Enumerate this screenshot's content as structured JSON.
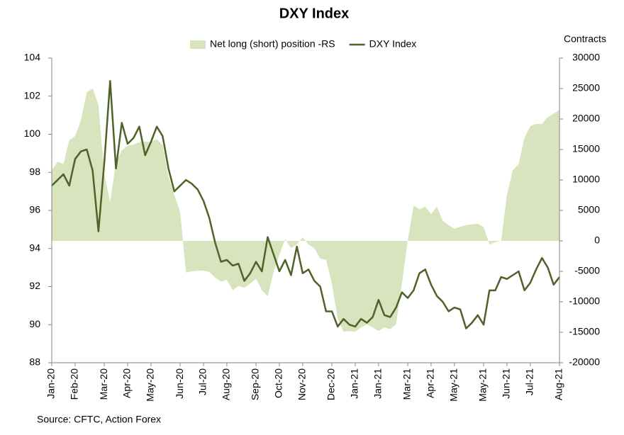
{
  "chart_data": {
    "type": "line",
    "title": "DXY Index",
    "y2label": "Contracts",
    "source": "Source: CFTC, Action Forex",
    "categories": [
      "Jan-20",
      null,
      null,
      null,
      "Feb-20",
      null,
      null,
      null,
      null,
      "Mar-20",
      null,
      null,
      null,
      "Apr-20",
      null,
      null,
      null,
      "May-20",
      null,
      null,
      null,
      null,
      "Jun-20",
      null,
      null,
      null,
      "Jul-20",
      null,
      null,
      null,
      "Aug-20",
      null,
      null,
      null,
      null,
      "Sep-20",
      null,
      null,
      null,
      "Oct-20",
      null,
      null,
      null,
      "Nov-20",
      null,
      null,
      null,
      null,
      "Dec-20",
      null,
      null,
      null,
      "Jan-21",
      null,
      null,
      null,
      "Jan-21",
      null,
      null,
      null,
      null,
      "Mar-21",
      null,
      null,
      null,
      "Apr-21",
      null,
      null,
      null,
      "May-21",
      null,
      null,
      null,
      null,
      "May-21",
      null,
      null,
      null,
      "Jun-21",
      null,
      null,
      null,
      "Jul-21",
      null,
      null,
      null,
      null,
      "Aug-21"
    ],
    "series": [
      {
        "name": "Net long (short) position -RS",
        "color": "#d7e4bd",
        "type": "area",
        "axis": "y2",
        "values": [
          11600,
          13000,
          12600,
          16500,
          17200,
          19800,
          24400,
          25000,
          22300,
          11000,
          6400,
          12800,
          14900,
          15600,
          15800,
          16200,
          16300,
          16300,
          16700,
          15700,
          10500,
          7600,
          4700,
          -5200,
          -5000,
          -4900,
          -4900,
          -5100,
          -6000,
          -6700,
          -6400,
          -8100,
          -7400,
          -7700,
          -7000,
          -6200,
          -8100,
          -9100,
          -5200,
          -2300,
          300,
          -1200,
          -600,
          600,
          -600,
          -1200,
          -2900,
          -3100,
          -7000,
          -12800,
          -14900,
          -14800,
          -14900,
          -14200,
          -13700,
          -14200,
          -14800,
          -14200,
          -14500,
          -13700,
          -7000,
          0,
          5800,
          5200,
          5600,
          4400,
          5600,
          3300,
          2600,
          2000,
          2300,
          2600,
          2700,
          2800,
          2300,
          -600,
          -200,
          0,
          7600,
          11600,
          12600,
          16900,
          18800,
          19200,
          19200,
          20300,
          20900,
          21500
        ]
      },
      {
        "name": "DXY Index",
        "color": "#4f6228",
        "type": "line",
        "values": [
          97.3,
          97.6,
          97.9,
          97.3,
          98.7,
          99.1,
          99.2,
          98.1,
          94.9,
          98.5,
          102.8,
          98.2,
          100.6,
          99.5,
          99.8,
          100.4,
          98.9,
          99.6,
          100.4,
          99.9,
          98.2,
          97.0,
          97.3,
          97.6,
          97.4,
          97.1,
          96.5,
          95.6,
          94.3,
          93.3,
          93.4,
          93.1,
          93.2,
          92.3,
          92.7,
          93.3,
          92.8,
          94.6,
          93.7,
          92.8,
          93.4,
          92.6,
          94.1,
          92.7,
          92.9,
          92.3,
          92.0,
          90.7,
          90.7,
          89.9,
          90.3,
          90.0,
          89.9,
          90.3,
          90.1,
          90.4,
          91.3,
          90.5,
          90.4,
          90.9,
          91.7,
          91.4,
          91.8,
          92.7,
          92.9,
          92.1,
          91.5,
          91.2,
          90.7,
          90.9,
          90.8,
          89.8,
          90.1,
          90.5,
          90.0,
          91.8,
          91.8,
          92.5,
          92.4,
          92.6,
          92.8,
          91.8,
          92.2,
          92.9,
          93.5,
          93.0,
          92.1,
          92.5
        ]
      }
    ],
    "ylim": [
      88,
      104
    ],
    "yticks": [
      88,
      90,
      92,
      94,
      96,
      98,
      100,
      102,
      104
    ],
    "y2lim": [
      -20000,
      30000
    ],
    "y2ticks": [
      -20000,
      -15000,
      -10000,
      -5000,
      0,
      5000,
      10000,
      15000,
      20000,
      25000,
      30000
    ],
    "grid": false,
    "legend": "top"
  }
}
